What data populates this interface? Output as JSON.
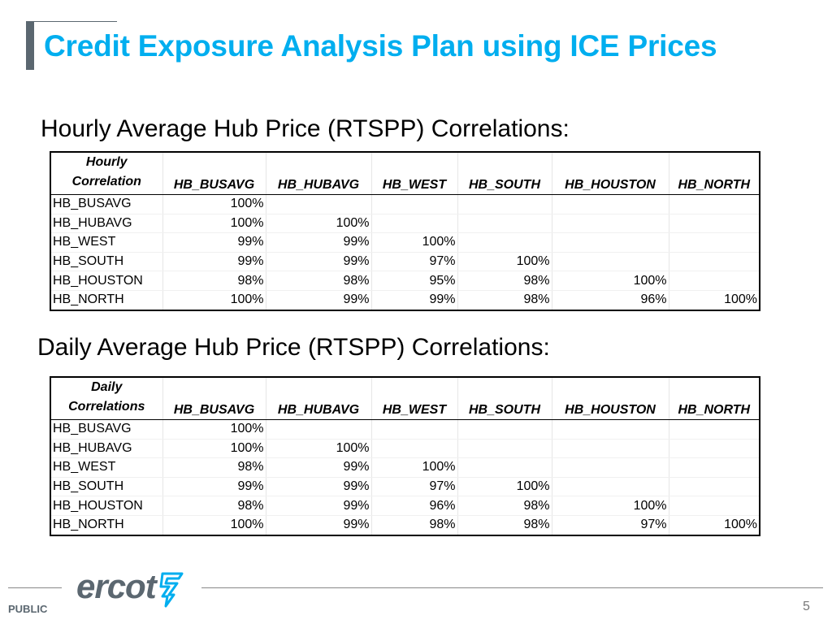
{
  "title": "Credit Exposure Analysis Plan using ICE Prices",
  "hourly": {
    "heading": "Hourly Average Hub Price (RTSPP) Correlations:",
    "corner_line1": "Hourly",
    "corner_line2": "Correlation",
    "columns": [
      "HB_BUSAVG",
      "HB_HUBAVG",
      "HB_WEST",
      "HB_SOUTH",
      "HB_HOUSTON",
      "HB_NORTH"
    ],
    "rows": [
      {
        "label": "HB_BUSAVG",
        "values": [
          "100%",
          "",
          "",
          "",
          "",
          ""
        ]
      },
      {
        "label": "HB_HUBAVG",
        "values": [
          "100%",
          "100%",
          "",
          "",
          "",
          ""
        ]
      },
      {
        "label": "HB_WEST",
        "values": [
          "99%",
          "99%",
          "100%",
          "",
          "",
          ""
        ]
      },
      {
        "label": "HB_SOUTH",
        "values": [
          "99%",
          "99%",
          "97%",
          "100%",
          "",
          ""
        ]
      },
      {
        "label": "HB_HOUSTON",
        "values": [
          "98%",
          "98%",
          "95%",
          "98%",
          "100%",
          ""
        ]
      },
      {
        "label": "HB_NORTH",
        "values": [
          "100%",
          "99%",
          "99%",
          "98%",
          "96%",
          "100%"
        ]
      }
    ]
  },
  "daily": {
    "heading": "Daily Average Hub Price (RTSPP) Correlations:",
    "corner_line1": "Daily",
    "corner_line2": "Correlations",
    "columns": [
      "HB_BUSAVG",
      "HB_HUBAVG",
      "HB_WEST",
      "HB_SOUTH",
      "HB_HOUSTON",
      "HB_NORTH"
    ],
    "rows": [
      {
        "label": "HB_BUSAVG",
        "values": [
          "100%",
          "",
          "",
          "",
          "",
          ""
        ]
      },
      {
        "label": "HB_HUBAVG",
        "values": [
          "100%",
          "100%",
          "",
          "",
          "",
          ""
        ]
      },
      {
        "label": "HB_WEST",
        "values": [
          "98%",
          "99%",
          "100%",
          "",
          "",
          ""
        ]
      },
      {
        "label": "HB_SOUTH",
        "values": [
          "99%",
          "99%",
          "97%",
          "100%",
          "",
          ""
        ]
      },
      {
        "label": "HB_HOUSTON",
        "values": [
          "98%",
          "99%",
          "96%",
          "98%",
          "100%",
          ""
        ]
      },
      {
        "label": "HB_NORTH",
        "values": [
          "100%",
          "99%",
          "98%",
          "98%",
          "97%",
          "100%"
        ]
      }
    ]
  },
  "footer": {
    "logo_text": "ercot",
    "classification": "PUBLIC",
    "page_number": "5"
  },
  "colors": {
    "title": "#00aeef",
    "accent_gray": "#5b6770",
    "logo_mark": "#00aeef"
  },
  "icons": {
    "logo_mark": "ercot-lightning-icon"
  }
}
